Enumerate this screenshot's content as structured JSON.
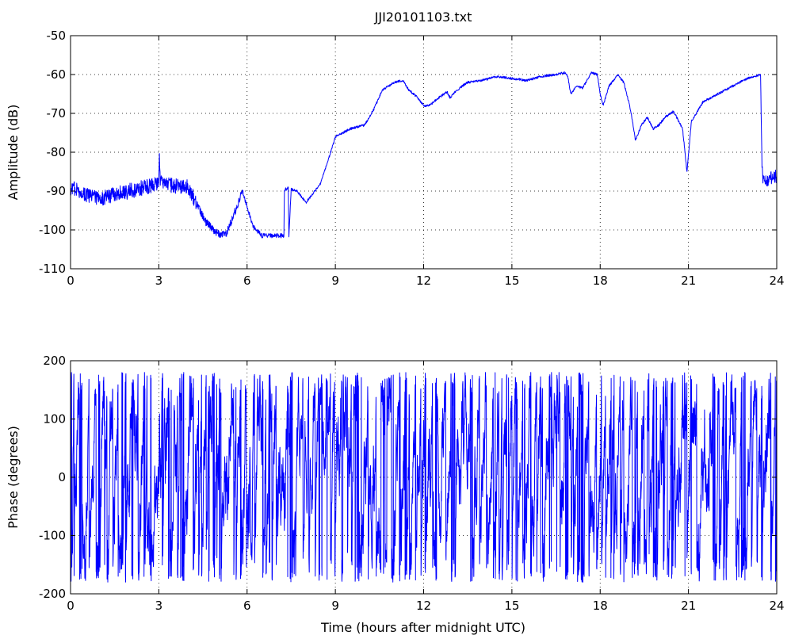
{
  "chart_data": [
    {
      "type": "line",
      "title": "JJI20101103.txt",
      "xlabel": "",
      "ylabel": "Amplitude (dB)",
      "xlim": [
        0,
        24
      ],
      "ylim": [
        -110,
        -50
      ],
      "xticks": [
        0,
        3,
        6,
        9,
        12,
        15,
        18,
        21,
        24
      ],
      "yticks": [
        -110,
        -100,
        -90,
        -80,
        -70,
        -60,
        -50
      ],
      "grid": true,
      "color": "#0000ff",
      "noise": [
        {
          "from": 0,
          "to": 4.3,
          "amp": 2.0
        },
        {
          "from": 4.3,
          "to": 5.8,
          "amp": 1.0
        },
        {
          "from": 5.8,
          "to": 7.4,
          "amp": 0.6
        },
        {
          "from": 7.4,
          "to": 23.5,
          "amp": 0.3
        },
        {
          "from": 23.5,
          "to": 24,
          "amp": 1.8
        }
      ],
      "series": [
        {
          "x": [
            0,
            0.5,
            1,
            1.5,
            2,
            2.5,
            3,
            3.02,
            3.05,
            3.1,
            3.5,
            4,
            4.2,
            4.4,
            4.6,
            5,
            5.3,
            5.5,
            5.7,
            5.85,
            6,
            6.2,
            6.5,
            7,
            7.25,
            7.27,
            7.4,
            7.42,
            7.5,
            7.7,
            8,
            8.2,
            8.5,
            8.8,
            9,
            9.5,
            10,
            10.3,
            10.6,
            11,
            11.3,
            11.5,
            11.8,
            12,
            12.2,
            12.5,
            12.8,
            12.9,
            13,
            13.3,
            13.5,
            14,
            14.5,
            15,
            15.5,
            16,
            16.5,
            16.8,
            16.9,
            17,
            17.2,
            17.4,
            17.7,
            17.9,
            18,
            18.1,
            18.3,
            18.6,
            18.8,
            19,
            19.1,
            19.2,
            19.4,
            19.6,
            19.8,
            20,
            20.2,
            20.5,
            20.8,
            20.95,
            21.1,
            21.5,
            22,
            22.5,
            23,
            23.45,
            23.5,
            23.55,
            23.7,
            24
          ],
          "y": [
            -89,
            -91,
            -92,
            -91,
            -90,
            -89,
            -88,
            -80.5,
            -87,
            -88,
            -88.5,
            -89,
            -92,
            -95,
            -98,
            -101,
            -101,
            -97,
            -93,
            -90,
            -94,
            -99,
            -101.5,
            -101.5,
            -101.5,
            -89.5,
            -89.5,
            -101.5,
            -89.5,
            -90,
            -93,
            -91,
            -88,
            -81,
            -76,
            -74,
            -73,
            -69,
            -64,
            -62,
            -61.5,
            -64,
            -66,
            -68,
            -68,
            -66,
            -64.5,
            -66,
            -65,
            -63,
            -62,
            -61.5,
            -60.5,
            -61,
            -61.5,
            -60.5,
            -60,
            -59.5,
            -60.5,
            -65,
            -63,
            -63.5,
            -59.5,
            -60,
            -65,
            -68,
            -63,
            -60,
            -62,
            -68,
            -72,
            -77,
            -73,
            -71,
            -74,
            -73,
            -71,
            -69.5,
            -74,
            -85,
            -72,
            -67,
            -65,
            -63,
            -61,
            -60,
            -84,
            -88,
            -87,
            -86
          ]
        }
      ]
    },
    {
      "type": "line",
      "title": "",
      "xlabel": "Time (hours after midnight UTC)",
      "ylabel": "Phase (degrees)",
      "xlim": [
        0,
        24
      ],
      "ylim": [
        -200,
        200
      ],
      "xticks": [
        0,
        3,
        6,
        9,
        12,
        15,
        18,
        21,
        24
      ],
      "yticks": [
        -200,
        -100,
        0,
        100,
        200
      ],
      "grid": true,
      "color": "#0000ff",
      "series": [
        {
          "x_range": [
            0,
            24
          ],
          "y_range": [
            -180,
            180
          ],
          "wrap": true
        }
      ]
    }
  ]
}
